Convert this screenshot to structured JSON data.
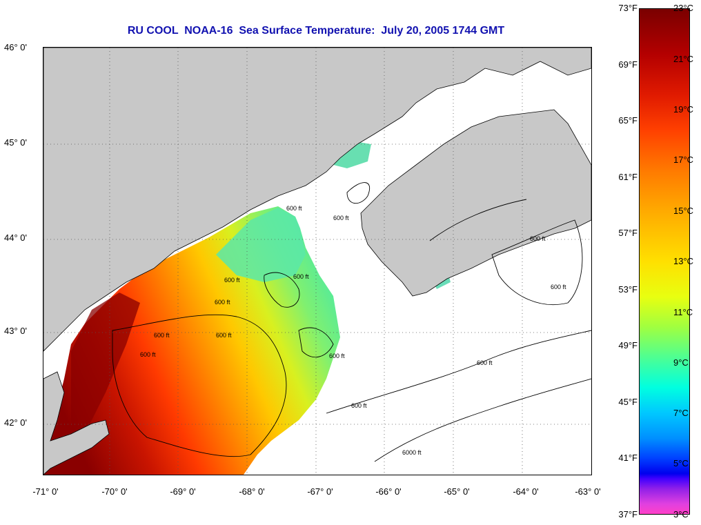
{
  "title": "RU COOL  NOAA-16  Sea Surface Temperature:  July 20, 2005 1744 GMT",
  "latitude_labels": [
    "46° 0'",
    "45° 0'",
    "44° 0'",
    "43° 0'",
    "42° 0'"
  ],
  "longitude_labels": [
    "-71° 0'",
    "-70° 0'",
    "-69° 0'",
    "-68° 0'",
    "-67° 0'",
    "-66° 0'",
    "-65° 0'",
    "-64° 0'",
    "-63° 0'"
  ],
  "colorbar": {
    "fahrenheit": [
      "73°F",
      "69°F",
      "65°F",
      "61°F",
      "57°F",
      "53°F",
      "49°F",
      "45°F",
      "41°F",
      "37°F"
    ],
    "celsius": [
      "23°C",
      "21°C",
      "19°C",
      "17°C",
      "15°C",
      "13°C",
      "11°C",
      "9°C",
      "7°C",
      "5°C",
      "3°C"
    ]
  },
  "contour_labels": [
    "600 ft",
    "600 ft",
    "600 ft",
    "600 ft",
    "600 ft",
    "600 ft",
    "600 ft",
    "600 ft",
    "600 ft",
    "600 ft",
    "600 ft",
    "600 ft",
    "600 ft",
    "6000 ft"
  ],
  "colors": {
    "land": "#c8c8c8",
    "no_data": "#ffffff",
    "title": "#1111b0"
  }
}
